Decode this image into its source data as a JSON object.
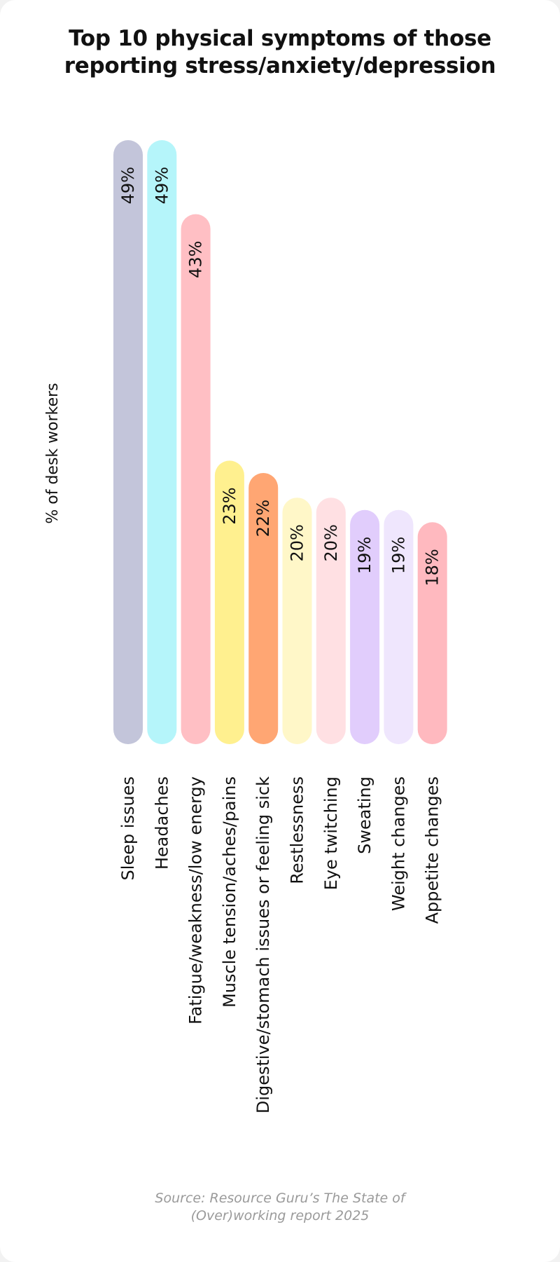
{
  "title_lines": [
    "Top 10 physical symptoms of those",
    "reporting stress/anxiety/depression"
  ],
  "source_lines": [
    "Source: Resource Guru’s The State of",
    "(Over)working report 2025"
  ],
  "chart_data": {
    "type": "bar",
    "orientation": "vertical",
    "ylabel": "% of desk workers",
    "ylim": [
      0,
      49
    ],
    "grid": false,
    "legend": "none",
    "categories": [
      "Sleep issues",
      "Headaches",
      "Fatigue/weakness/low energy",
      "Muscle tension/aches/pains",
      "Digestive/stomach issues or feeling sick",
      "Restlessness",
      "Eye twitching",
      "Sweating",
      "Weight changes",
      "Appetite changes"
    ],
    "values": [
      49,
      49,
      43,
      23,
      22,
      20,
      20,
      19,
      19,
      18
    ],
    "data_labels": [
      "49%",
      "49%",
      "43%",
      "23%",
      "22%",
      "20%",
      "20%",
      "19%",
      "19%",
      "18%"
    ],
    "colors": [
      "#c3c5da",
      "#b5f5fa",
      "#ffbfc4",
      "#fff08f",
      "#ffa673",
      "#fff7c8",
      "#ffe0e3",
      "#e1cdfc",
      "#efe6fd",
      "#ffb9bf"
    ]
  }
}
